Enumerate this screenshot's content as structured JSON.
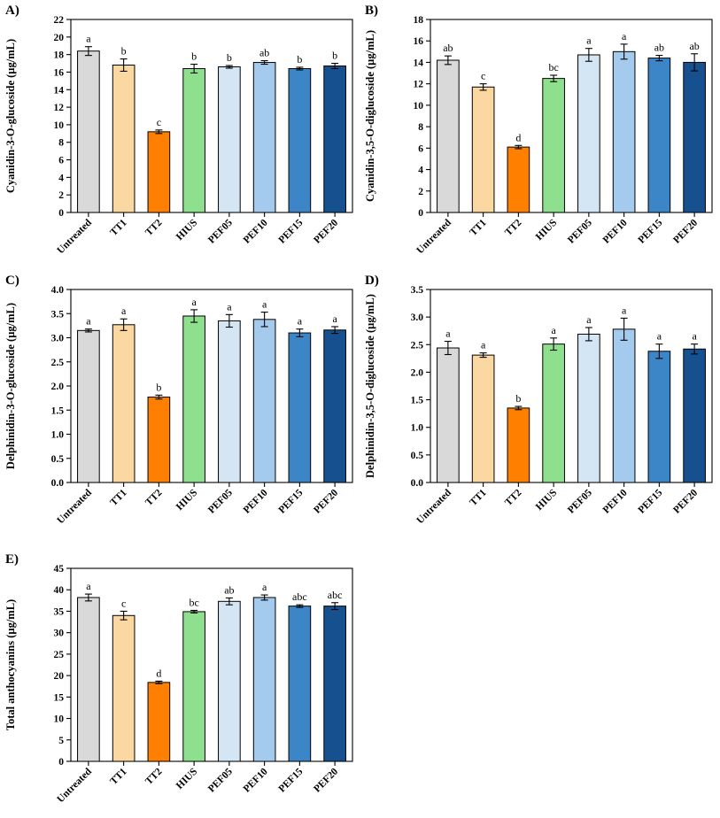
{
  "page": {
    "background": "#ffffff"
  },
  "colors": {
    "bars": [
      "#d9d9d9",
      "#fbd8a2",
      "#ff8000",
      "#8ee08e",
      "#d4e5f4",
      "#a4cbee",
      "#3c86c8",
      "#17508f"
    ],
    "edge": "#000000",
    "error_bar": "#000000"
  },
  "categories": [
    "Untreated",
    "TT1",
    "TT2",
    "HIUS",
    "PEF05",
    "PEF10",
    "PEF15",
    "PEF20"
  ],
  "chart_data": [
    {
      "type": "bar",
      "panel_label": "A)",
      "ylabel": "Cyanidin-3-O-glucoside (µg/mL)",
      "xlabel": "",
      "ylim": [
        0,
        22
      ],
      "ytick": 2,
      "ydecimals": 0,
      "grid": false,
      "legend": "none",
      "categories": [
        "Untreated",
        "TT1",
        "TT2",
        "HIUS",
        "PEF05",
        "PEF10",
        "PEF15",
        "PEF20"
      ],
      "values": [
        18.4,
        16.8,
        9.2,
        16.4,
        16.6,
        17.1,
        16.4,
        16.7
      ],
      "errors": [
        0.5,
        0.7,
        0.2,
        0.5,
        0.15,
        0.2,
        0.15,
        0.3
      ],
      "letters": [
        "a",
        "b",
        "c",
        "b",
        "b",
        "ab",
        "b",
        "b"
      ]
    },
    {
      "type": "bar",
      "panel_label": "B)",
      "ylabel": "Cyanidin-3,5-O-diglucoside (µg/mL)",
      "xlabel": "",
      "ylim": [
        0,
        18
      ],
      "ytick": 2,
      "ydecimals": 0,
      "grid": false,
      "legend": "none",
      "categories": [
        "Untreated",
        "TT1",
        "TT2",
        "HIUS",
        "PEF05",
        "PEF10",
        "PEF15",
        "PEF20"
      ],
      "values": [
        14.2,
        11.7,
        6.1,
        12.5,
        14.7,
        15.0,
        14.4,
        14.0
      ],
      "errors": [
        0.4,
        0.3,
        0.15,
        0.3,
        0.6,
        0.7,
        0.25,
        0.8
      ],
      "letters": [
        "ab",
        "c",
        "d",
        "bc",
        "a",
        "a",
        "ab",
        "ab"
      ]
    },
    {
      "type": "bar",
      "panel_label": "C)",
      "ylabel": "Delphinidin-3-O-glucoside (µg/mL)",
      "xlabel": "",
      "ylim": [
        0,
        4.0
      ],
      "ytick": 0.5,
      "ydecimals": 1,
      "grid": false,
      "legend": "none",
      "categories": [
        "Untreated",
        "TT1",
        "TT2",
        "HIUS",
        "PEF05",
        "PEF10",
        "PEF15",
        "PEF20"
      ],
      "values": [
        3.15,
        3.27,
        1.77,
        3.45,
        3.35,
        3.38,
        3.1,
        3.16
      ],
      "errors": [
        0.03,
        0.12,
        0.04,
        0.13,
        0.13,
        0.15,
        0.08,
        0.07
      ],
      "letters": [
        "a",
        "a",
        "b",
        "a",
        "a",
        "a",
        "a",
        "a"
      ]
    },
    {
      "type": "bar",
      "panel_label": "D)",
      "ylabel": "Delphinidin-3,5-O-diglucoside (µg/mL)",
      "xlabel": "",
      "ylim": [
        0,
        3.5
      ],
      "ytick": 0.5,
      "ydecimals": 1,
      "grid": false,
      "legend": "none",
      "categories": [
        "Untreated",
        "TT1",
        "TT2",
        "HIUS",
        "PEF05",
        "PEF10",
        "PEF15",
        "PEF20"
      ],
      "values": [
        2.44,
        2.31,
        1.35,
        2.51,
        2.69,
        2.78,
        2.38,
        2.42
      ],
      "errors": [
        0.12,
        0.04,
        0.03,
        0.11,
        0.12,
        0.2,
        0.13,
        0.09
      ],
      "letters": [
        "a",
        "a",
        "b",
        "a",
        "a",
        "a",
        "a",
        "a"
      ]
    },
    {
      "type": "bar",
      "panel_label": "E)",
      "ylabel": "Total anthocyanins (µg/mL)",
      "xlabel": "",
      "ylim": [
        0,
        45
      ],
      "ytick": 5,
      "ydecimals": 0,
      "grid": false,
      "legend": "none",
      "categories": [
        "Untreated",
        "TT1",
        "TT2",
        "HIUS",
        "PEF05",
        "PEF10",
        "PEF15",
        "PEF20"
      ],
      "values": [
        38.2,
        34.0,
        18.4,
        34.9,
        37.3,
        38.2,
        36.2,
        36.2
      ],
      "errors": [
        0.8,
        1.0,
        0.3,
        0.3,
        0.8,
        0.6,
        0.3,
        0.8
      ],
      "letters": [
        "a",
        "c",
        "d",
        "bc",
        "ab",
        "a",
        "abc",
        "abc"
      ]
    }
  ]
}
